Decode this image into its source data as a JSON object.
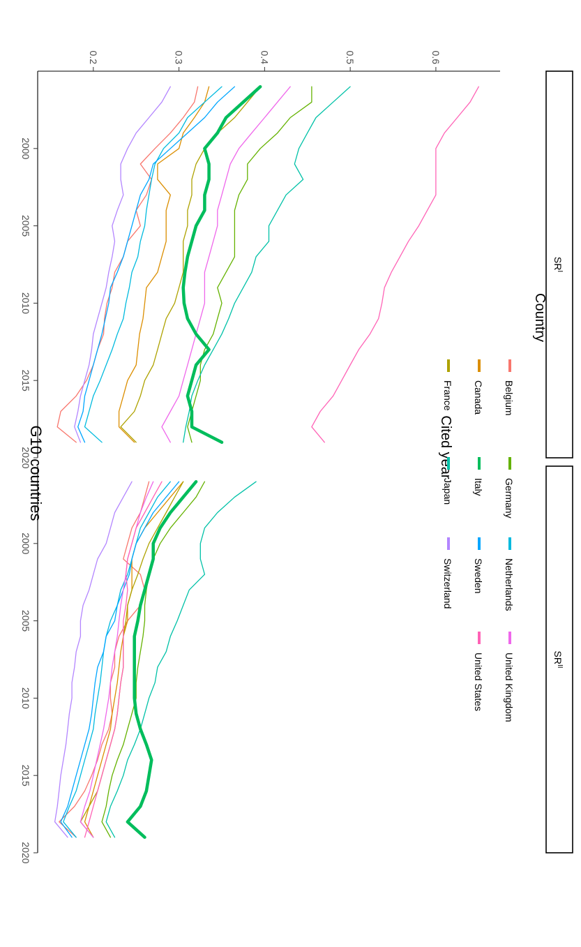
{
  "chart_data": {
    "type": "line",
    "title": "G10 countries",
    "xlabel": "Cited year",
    "ylabel": "",
    "ylim": [
      0.135,
      0.675
    ],
    "xlim": [
      1995.0,
      2020
    ],
    "x_ticks": [
      2000,
      2005,
      2010,
      2015,
      2020
    ],
    "x_tick_labels": [
      "2000",
      "2005",
      "2010",
      "2015",
      "2020"
    ],
    "y_ticks": [
      0.2,
      0.3,
      0.4,
      0.5,
      0.6
    ],
    "y_tick_labels": [
      "0.2",
      "0.3",
      "0.4",
      "0.5",
      "0.6"
    ],
    "grid": false,
    "legend": {
      "title": "Country",
      "placement": "bottom",
      "items": [
        "Belgium",
        "Canada",
        "France",
        "Germany",
        "Italy",
        "Japan",
        "Netherlands",
        "Sweden",
        "Switzerland",
        "United Kingdom",
        "United States"
      ]
    },
    "x": [
      1996,
      1997,
      1998,
      1999,
      2000,
      2001,
      2002,
      2003,
      2004,
      2005,
      2006,
      2007,
      2008,
      2009,
      2010,
      2011,
      2012,
      2013,
      2014,
      2015,
      2016,
      2017,
      2018,
      2019
    ],
    "panels": [
      {
        "label_main": "SR",
        "label_sup": "I",
        "series": [
          {
            "name": "Belgium",
            "color": "#F8766D",
            "width": 1.3,
            "values": [
              0.322,
              0.318,
              0.305,
              0.29,
              0.272,
              0.255,
              0.268,
              0.262,
              0.25,
              0.255,
              0.24,
              0.235,
              0.225,
              0.222,
              0.216,
              0.213,
              0.212,
              0.205,
              0.2,
              0.192,
              0.18,
              0.162,
              0.158,
              0.18
            ]
          },
          {
            "name": "Canada",
            "color": "#DB8E00",
            "width": 1.3,
            "values": [
              0.335,
              0.33,
              0.318,
              0.305,
              0.3,
              0.275,
              0.275,
              0.29,
              0.285,
              0.285,
              0.285,
              0.28,
              0.275,
              0.262,
              0.26,
              0.258,
              0.254,
              0.252,
              0.25,
              0.24,
              0.235,
              0.23,
              0.23,
              0.248
            ]
          },
          {
            "name": "France",
            "color": "#AEA200",
            "width": 1.3,
            "values": [
              0.395,
              0.38,
              0.365,
              0.345,
              0.33,
              0.32,
              0.315,
              0.315,
              0.31,
              0.31,
              0.305,
              0.305,
              0.305,
              0.3,
              0.295,
              0.285,
              0.28,
              0.275,
              0.27,
              0.26,
              0.255,
              0.248,
              0.232,
              0.25
            ]
          },
          {
            "name": "Germany",
            "color": "#64B200",
            "width": 1.3,
            "values": [
              0.455,
              0.455,
              0.43,
              0.415,
              0.395,
              0.38,
              0.38,
              0.37,
              0.365,
              0.365,
              0.365,
              0.365,
              0.355,
              0.345,
              0.35,
              0.345,
              0.34,
              0.33,
              0.325,
              0.325,
              0.32,
              0.315,
              0.31,
              0.315
            ]
          },
          {
            "name": "Italy",
            "color": "#00BD5C",
            "width": 4.5,
            "values": [
              0.395,
              0.375,
              0.355,
              0.345,
              0.33,
              0.335,
              0.335,
              0.33,
              0.33,
              0.32,
              0.315,
              0.31,
              0.307,
              0.305,
              0.306,
              0.31,
              0.32,
              0.335,
              0.32,
              0.315,
              0.31,
              0.315,
              0.315,
              0.35
            ]
          },
          {
            "name": "Japan",
            "color": "#00C1A7",
            "width": 1.3,
            "values": [
              0.5,
              0.48,
              0.46,
              0.45,
              0.44,
              0.435,
              0.445,
              0.425,
              0.415,
              0.405,
              0.405,
              0.39,
              0.385,
              0.375,
              0.365,
              0.358,
              0.35,
              0.34,
              0.33,
              0.322,
              0.315,
              0.312,
              0.308,
              0.305
            ]
          },
          {
            "name": "Netherlands",
            "color": "#00BADE",
            "width": 1.3,
            "values": [
              0.35,
              0.33,
              0.31,
              0.3,
              0.282,
              0.272,
              0.268,
              0.265,
              0.262,
              0.26,
              0.255,
              0.252,
              0.245,
              0.242,
              0.238,
              0.235,
              0.228,
              0.222,
              0.215,
              0.208,
              0.2,
              0.195,
              0.19,
              0.21
            ]
          },
          {
            "name": "Sweden",
            "color": "#00A6FF",
            "width": 1.3,
            "values": [
              0.365,
              0.345,
              0.33,
              0.31,
              0.29,
              0.27,
              0.265,
              0.255,
              0.25,
              0.245,
              0.24,
              0.235,
              0.228,
              0.22,
              0.218,
              0.214,
              0.21,
              0.205,
              0.2,
              0.195,
              0.19,
              0.188,
              0.182,
              0.19
            ]
          },
          {
            "name": "Switzerland",
            "color": "#B385FF",
            "width": 1.3,
            "values": [
              0.29,
              0.28,
              0.265,
              0.25,
              0.24,
              0.232,
              0.232,
              0.235,
              0.228,
              0.222,
              0.225,
              0.222,
              0.218,
              0.215,
              0.21,
              0.205,
              0.2,
              0.198,
              0.195,
              0.19,
              0.185,
              0.182,
              0.178,
              0.185
            ]
          },
          {
            "name": "United Kingdom",
            "color": "#EF67EB",
            "width": 1.3,
            "values": [
              0.43,
              0.415,
              0.4,
              0.385,
              0.37,
              0.36,
              0.355,
              0.35,
              0.345,
              0.345,
              0.34,
              0.335,
              0.33,
              0.33,
              0.33,
              0.325,
              0.32,
              0.315,
              0.31,
              0.305,
              0.3,
              0.29,
              0.28,
              0.29
            ]
          },
          {
            "name": "United States",
            "color": "#FF63B6",
            "width": 1.3,
            "values": [
              0.65,
              0.64,
              0.625,
              0.61,
              0.6,
              0.6,
              0.6,
              0.6,
              0.59,
              0.58,
              0.568,
              0.558,
              0.548,
              0.54,
              0.537,
              0.533,
              0.523,
              0.51,
              0.5,
              0.49,
              0.48,
              0.465,
              0.455,
              0.47
            ]
          }
        ]
      },
      {
        "label_main": "SR",
        "label_sup": "II",
        "series": [
          {
            "name": "Belgium",
            "color": "#F8766D",
            "width": 1.3,
            "values": [
              0.265,
              0.26,
              0.255,
              0.245,
              0.24,
              0.235,
              0.255,
              0.26,
              0.255,
              0.24,
              0.23,
              0.225,
              0.225,
              0.22,
              0.22,
              0.222,
              0.218,
              0.21,
              0.205,
              0.198,
              0.19,
              0.178,
              0.16,
              0.18
            ]
          },
          {
            "name": "Canada",
            "color": "#DB8E00",
            "width": 1.3,
            "values": [
              0.305,
              0.29,
              0.275,
              0.26,
              0.25,
              0.245,
              0.245,
              0.245,
              0.24,
              0.24,
              0.235,
              0.232,
              0.23,
              0.228,
              0.225,
              0.222,
              0.22,
              0.215,
              0.21,
              0.205,
              0.2,
              0.195,
              0.19,
              0.2
            ]
          },
          {
            "name": "France",
            "color": "#AEA200",
            "width": 1.3,
            "values": [
              0.305,
              0.295,
              0.285,
              0.275,
              0.265,
              0.258,
              0.252,
              0.245,
              0.24,
              0.238,
              0.235,
              0.235,
              0.235,
              0.232,
              0.23,
              0.228,
              0.225,
              0.22,
              0.215,
              0.21,
              0.205,
              0.195,
              0.185,
              0.2
            ]
          },
          {
            "name": "Germany",
            "color": "#64B200",
            "width": 1.3,
            "values": [
              0.33,
              0.32,
              0.305,
              0.29,
              0.278,
              0.27,
              0.265,
              0.262,
              0.26,
              0.26,
              0.258,
              0.255,
              0.252,
              0.25,
              0.25,
              0.245,
              0.24,
              0.235,
              0.228,
              0.222,
              0.218,
              0.215,
              0.21,
              0.22
            ]
          },
          {
            "name": "Italy",
            "color": "#00BD5C",
            "width": 4.5,
            "values": [
              0.32,
              0.305,
              0.29,
              0.278,
              0.27,
              0.27,
              0.265,
              0.26,
              0.255,
              0.252,
              0.248,
              0.248,
              0.248,
              0.248,
              0.248,
              0.25,
              0.255,
              0.262,
              0.268,
              0.265,
              0.262,
              0.255,
              0.24,
              0.26
            ]
          },
          {
            "name": "Japan",
            "color": "#00C1A7",
            "width": 1.3,
            "values": [
              0.39,
              0.365,
              0.345,
              0.33,
              0.325,
              0.325,
              0.33,
              0.312,
              0.305,
              0.298,
              0.29,
              0.285,
              0.275,
              0.272,
              0.265,
              0.26,
              0.255,
              0.248,
              0.24,
              0.235,
              0.228,
              0.22,
              0.215,
              0.225
            ]
          },
          {
            "name": "Netherlands",
            "color": "#00BADE",
            "width": 1.3,
            "values": [
              0.29,
              0.275,
              0.265,
              0.255,
              0.25,
              0.245,
              0.24,
              0.232,
              0.228,
              0.22,
              0.215,
              0.212,
              0.21,
              0.208,
              0.205,
              0.202,
              0.2,
              0.195,
              0.19,
              0.185,
              0.18,
              0.172,
              0.165,
              0.18
            ]
          },
          {
            "name": "Sweden",
            "color": "#00A6FF",
            "width": 1.3,
            "values": [
              0.3,
              0.285,
              0.27,
              0.26,
              0.25,
              0.245,
              0.242,
              0.235,
              0.228,
              0.225,
              0.215,
              0.212,
              0.205,
              0.202,
              0.2,
              0.198,
              0.195,
              0.19,
              0.185,
              0.18,
              0.175,
              0.17,
              0.162,
              0.175
            ]
          },
          {
            "name": "Switzerland",
            "color": "#B385FF",
            "width": 1.3,
            "values": [
              0.245,
              0.235,
              0.225,
              0.22,
              0.215,
              0.205,
              0.2,
              0.195,
              0.188,
              0.185,
              0.185,
              0.18,
              0.178,
              0.175,
              0.175,
              0.172,
              0.17,
              0.168,
              0.165,
              0.162,
              0.16,
              0.158,
              0.155,
              0.17
            ]
          },
          {
            "name": "United Kingdom",
            "color": "#EF67EB",
            "width": 1.3,
            "values": [
              0.27,
              0.262,
              0.255,
              0.25,
              0.245,
              0.24,
              0.238,
              0.235,
              0.232,
              0.23,
              0.228,
              0.225,
              0.222,
              0.22,
              0.218,
              0.215,
              0.212,
              0.208,
              0.204,
              0.2,
              0.196,
              0.19,
              0.185,
              0.2
            ]
          },
          {
            "name": "United States",
            "color": "#FF63B6",
            "width": 1.3,
            "values": [
              0.28,
              0.27,
              0.26,
              0.25,
              0.245,
              0.24,
              0.238,
              0.24,
              0.238,
              0.235,
              0.235,
              0.235,
              0.235,
              0.232,
              0.23,
              0.228,
              0.225,
              0.22,
              0.215,
              0.21,
              0.205,
              0.2,
              0.195,
              0.19
            ]
          }
        ]
      }
    ]
  }
}
